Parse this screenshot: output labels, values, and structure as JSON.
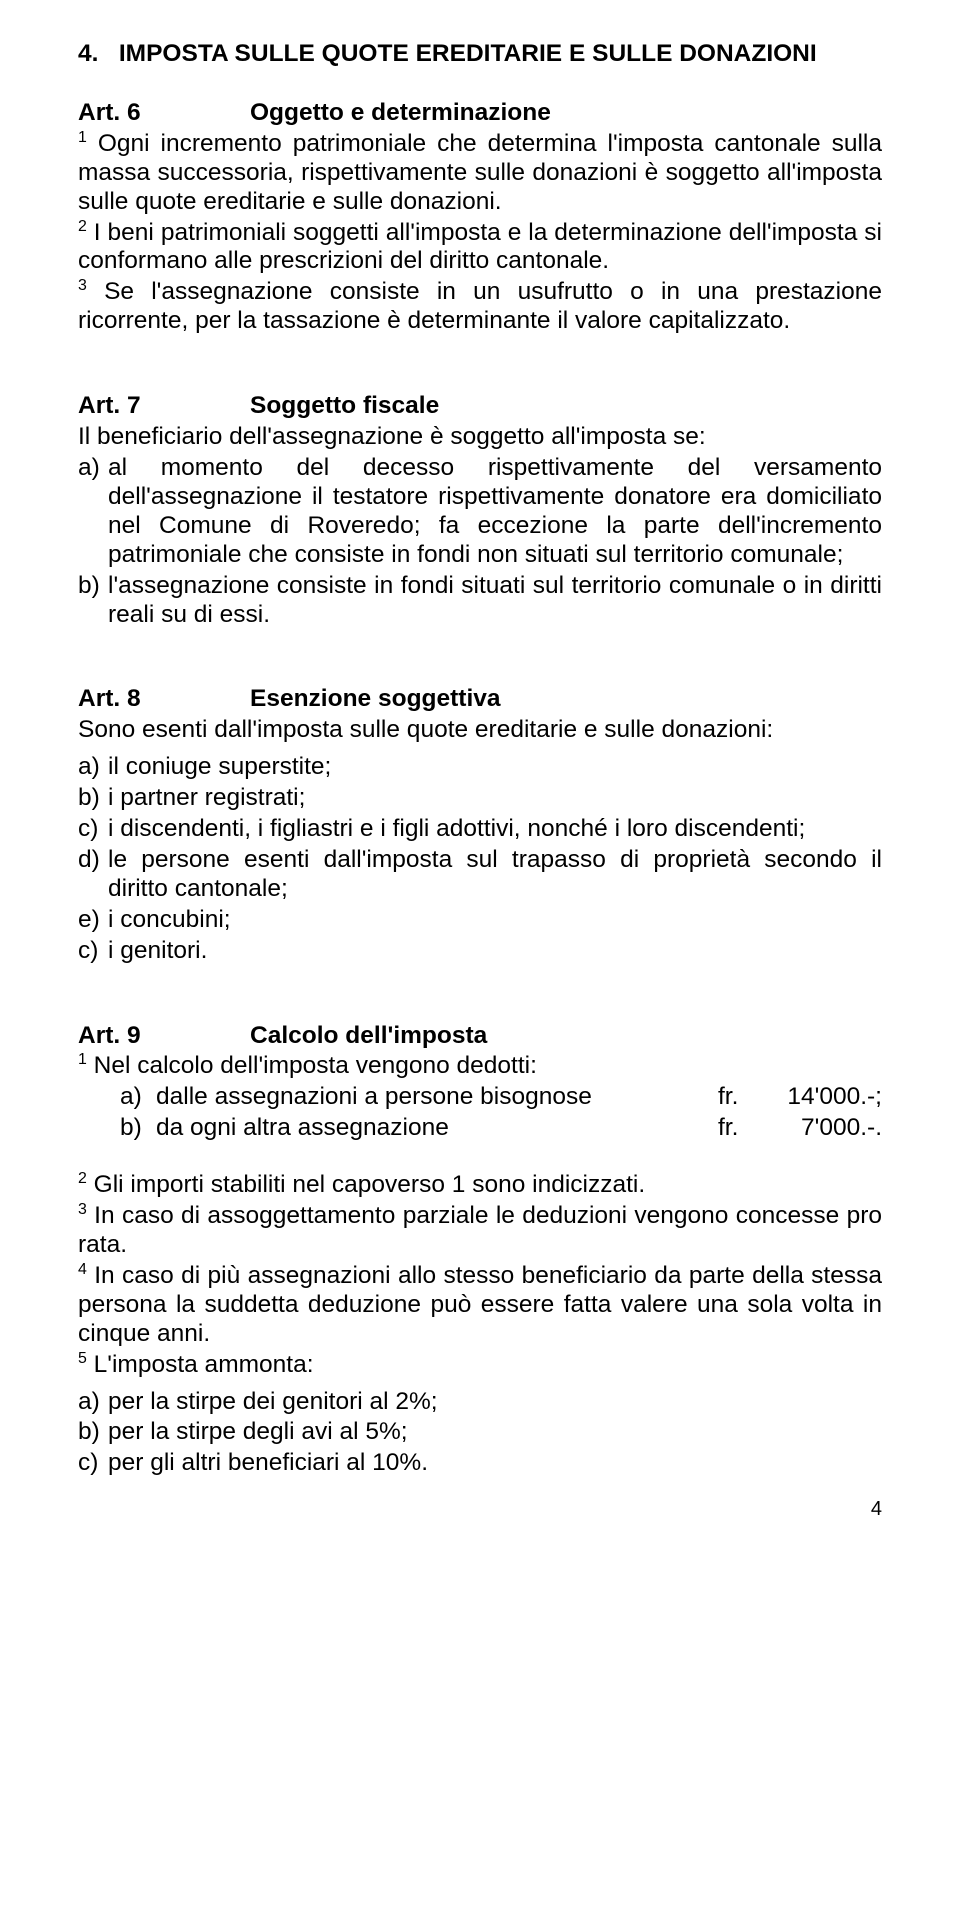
{
  "section": {
    "number": "4.",
    "title": "IMPOSTA SULLE QUOTE EREDITARIE E SULLE DONAZIONI"
  },
  "art6": {
    "num": "Art.  6",
    "title": "Oggetto e determinazione",
    "p1_sup": "1",
    "p1": " Ogni incremento patrimoniale che determina l'imposta cantonale sulla massa successoria, rispettivamente sulle donazioni è soggetto all'imposta sulle quote ereditarie e sulle donazioni.",
    "p2_sup": "2",
    "p2": " I beni patrimoniali soggetti all'imposta e la determinazione dell'imposta si conformano alle prescrizioni del diritto cantonale.",
    "p3_sup": "3",
    "p3": " Se l'assegnazione consiste in un usufrutto o in una prestazione ricorrente, per la tassazione è determinante il valore capitalizzato."
  },
  "art7": {
    "num": "Art.  7",
    "title": "Soggetto fiscale",
    "intro": "Il beneficiario dell'assegnazione è soggetto all'imposta se:",
    "a_m": "a)",
    "a": "al momento del decesso rispettivamente del versamento dell'assegnazione il testatore rispettivamente donatore era domiciliato nel Comune di Roveredo; fa eccezione la parte dell'incremento patrimoniale che consiste in fondi non situati sul territorio comunale;",
    "b_m": "b)",
    "b": "l'assegnazione consiste in fondi situati sul territorio comunale o in diritti reali su di essi."
  },
  "art8": {
    "num": "Art.  8",
    "title": "Esenzione soggettiva",
    "intro": "Sono esenti dall'imposta sulle quote ereditarie e sulle donazioni:",
    "items": [
      {
        "m": "a)",
        "t": "il coniuge superstite;"
      },
      {
        "m": "b)",
        "t": "i partner registrati;"
      },
      {
        "m": "c)",
        "t": "i discendenti, i figliastri e i figli adottivi, nonché i loro discendenti;"
      },
      {
        "m": "d)",
        "t": "le persone esenti dall'imposta sul trapasso di proprietà secondo il diritto cantonale;"
      },
      {
        "m": "e)",
        "t": "i concubini;"
      },
      {
        "m": "c)",
        "t": "i genitori."
      }
    ]
  },
  "art9": {
    "num": "Art.  9",
    "title": "Calcolo dell'imposta",
    "p1_sup": "1",
    "p1": " Nel calcolo dell'imposta vengono dedotti:",
    "calc": [
      {
        "m": "a)",
        "d": "dalle assegnazioni a persone bisognose",
        "fr": "fr.",
        "amt": "14'000.-;"
      },
      {
        "m": "b)",
        "d": "da ogni altra assegnazione",
        "fr": "fr.",
        "amt": "7'000.-."
      }
    ],
    "p2_sup": "2",
    "p2": " Gli importi stabiliti nel capoverso 1 sono indicizzati.",
    "p3_sup": "3",
    "p3": " In caso di assoggettamento parziale le deduzioni vengono concesse pro rata.",
    "p4_sup": "4",
    "p4": " In caso di più assegnazioni allo stesso beneficiario da parte della stessa persona la suddetta deduzione può essere fatta valere una sola volta in cinque anni.",
    "p5_sup": "5",
    "p5": " L'imposta ammonta:",
    "rates": [
      {
        "m": "a)",
        "t": "per la stirpe dei genitori al 2%;"
      },
      {
        "m": "b)",
        "t": "per la stirpe degli avi al 5%;"
      },
      {
        "m": "c)",
        "t": "per gli altri beneficiari al 10%."
      }
    ]
  },
  "page_number": "4"
}
